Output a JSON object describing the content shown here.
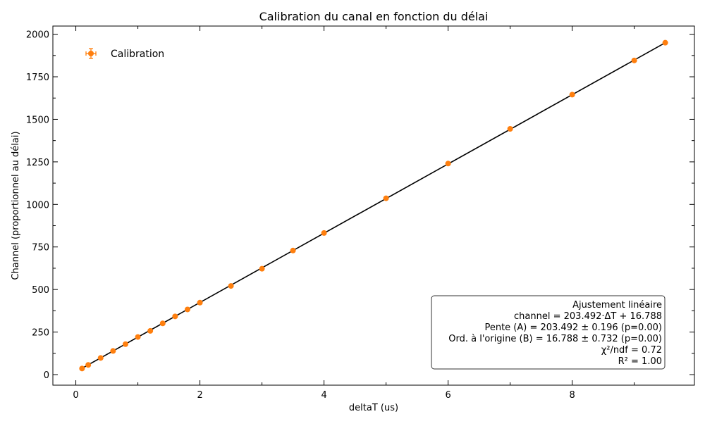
{
  "chart_data": {
    "type": "scatter",
    "title": "Calibration du canal en fonction du délai",
    "xlabel": "deltaT (us)",
    "ylabel": "Channel (proportionnel au délai)",
    "xlim": [
      -0.37,
      9.97
    ],
    "ylim": [
      -62,
      2048
    ],
    "x_ticks": [
      0,
      2,
      4,
      6,
      8
    ],
    "x_tick_labels": [
      "0",
      "2",
      "4",
      "6",
      "8"
    ],
    "x_minor_step": 1,
    "y_ticks": [
      0,
      250,
      500,
      750,
      1000,
      1250,
      1500,
      1750,
      2000
    ],
    "y_tick_labels": [
      "0",
      "250",
      "500",
      "750",
      "1000",
      "1250",
      "1500",
      "1750",
      "2000"
    ],
    "y_minor_step": 125,
    "grid": false,
    "legend": {
      "placement": "top-left",
      "entries": [
        "Calibration"
      ]
    },
    "series": [
      {
        "name": "Calibration",
        "color": "#ff7f0e",
        "marker": "circle",
        "x": [
          0.1,
          0.2,
          0.4,
          0.6,
          0.8,
          1.0,
          1.2,
          1.4,
          1.6,
          1.8,
          2.0,
          2.5,
          3.0,
          3.5,
          4.0,
          5.0,
          6.0,
          7.0,
          8.0,
          9.0,
          9.5
        ],
        "y": [
          36,
          57,
          98,
          139,
          179,
          221,
          257,
          301,
          342,
          383,
          423,
          521,
          622,
          729,
          832,
          1036,
          1240,
          1444,
          1645,
          1846,
          1950
        ]
      }
    ],
    "fit": {
      "slope": 203.492,
      "intercept": 16.788,
      "x_range": [
        0.1,
        9.5
      ],
      "color": "#000000"
    },
    "annotation": {
      "placement": "bottom-right",
      "lines": [
        "Ajustement linéaire",
        "channel = 203.492·ΔT + 16.788",
        "Pente (A) = 203.492 ± 0.196 (p=0.00)",
        "Ord. à l'origine (B) = 16.788 ± 0.732 (p=0.00)",
        "χ²/ndf = 0.72",
        "R² = 1.00"
      ]
    }
  }
}
